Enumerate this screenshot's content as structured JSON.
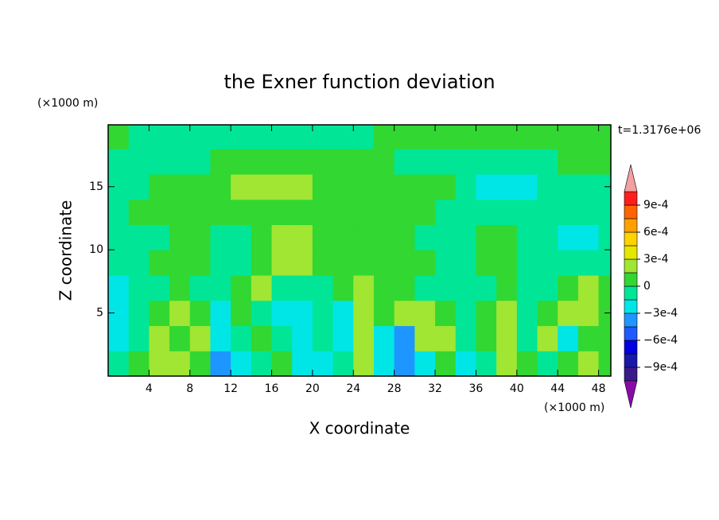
{
  "chart_data": {
    "type": "contour",
    "title": "the Exner function deviation",
    "x_label": "X coordinate",
    "y_label": "Z coordinate",
    "x_unit": "(×1000 m)",
    "y_unit": "(×1000 m)",
    "annotation": "t=1.3176e+06",
    "xlim": [
      0,
      49.2
    ],
    "ylim": [
      0,
      19.9
    ],
    "xticks": [
      4,
      8,
      12,
      16,
      20,
      24,
      28,
      32,
      36,
      40,
      44,
      48
    ],
    "yticks": [
      5,
      10,
      15
    ],
    "x": [
      1,
      3,
      5,
      7,
      9,
      11,
      13,
      15,
      17,
      19,
      21,
      23,
      25,
      27,
      29,
      31,
      33,
      35,
      37,
      39,
      41,
      43,
      45,
      47,
      49
    ],
    "y": [
      1,
      3,
      5,
      7,
      9,
      11,
      13,
      15,
      17,
      19
    ],
    "z": [
      [
        -5e-05,
        5e-05,
        0.0002,
        0.0002,
        5e-05,
        -0.0004,
        -0.0002,
        -5e-05,
        5e-05,
        -0.0002,
        -0.0002,
        -5e-05,
        0.0002,
        -0.0002,
        -0.0004,
        -0.0002,
        5e-05,
        -0.0002,
        -5e-05,
        0.0002,
        5e-05,
        -5e-05,
        5e-05,
        0.0002,
        5e-05
      ],
      [
        -0.0002,
        -5e-05,
        0.0002,
        5e-05,
        0.0002,
        -0.0002,
        -5e-05,
        5e-05,
        -5e-05,
        -0.0002,
        -5e-05,
        -0.0002,
        0.0002,
        -0.0002,
        -0.0004,
        0.0002,
        0.0002,
        -5e-05,
        5e-05,
        0.0002,
        -5e-05,
        0.0002,
        -0.0002,
        5e-05,
        5e-05
      ],
      [
        -0.0002,
        -5e-05,
        5e-05,
        0.0002,
        5e-05,
        -0.0002,
        5e-05,
        -5e-05,
        -0.0002,
        -0.0002,
        -5e-05,
        -0.0002,
        0.0002,
        5e-05,
        0.0002,
        0.0002,
        5e-05,
        -5e-05,
        5e-05,
        0.0002,
        -5e-05,
        5e-05,
        0.0002,
        0.0002,
        5e-05
      ],
      [
        -0.0002,
        -5e-05,
        -5e-05,
        5e-05,
        -5e-05,
        -5e-05,
        5e-05,
        0.0002,
        -5e-05,
        -5e-05,
        -5e-05,
        5e-05,
        0.0002,
        5e-05,
        5e-05,
        -5e-05,
        -5e-05,
        -5e-05,
        -5e-05,
        5e-05,
        -5e-05,
        -5e-05,
        5e-05,
        0.0002,
        5e-05
      ],
      [
        -5e-05,
        -5e-05,
        5e-05,
        5e-05,
        5e-05,
        -5e-05,
        -5e-05,
        5e-05,
        0.0002,
        0.0002,
        5e-05,
        5e-05,
        5e-05,
        5e-05,
        5e-05,
        5e-05,
        -5e-05,
        -5e-05,
        5e-05,
        5e-05,
        -5e-05,
        -5e-05,
        -5e-05,
        -5e-05,
        -5e-05
      ],
      [
        -5e-05,
        -5e-05,
        -5e-05,
        5e-05,
        5e-05,
        -5e-05,
        -5e-05,
        5e-05,
        0.0002,
        0.0002,
        5e-05,
        5e-05,
        5e-05,
        5e-05,
        5e-05,
        -5e-05,
        -5e-05,
        -5e-05,
        5e-05,
        5e-05,
        -5e-05,
        -5e-05,
        -0.00016,
        -0.00016,
        -5e-05
      ],
      [
        -5e-05,
        5e-05,
        5e-05,
        5e-05,
        5e-05,
        5e-05,
        5e-05,
        5e-05,
        5e-05,
        5e-05,
        5e-05,
        5e-05,
        5e-05,
        5e-05,
        5e-05,
        5e-05,
        -5e-05,
        -5e-05,
        -5e-05,
        -5e-05,
        -5e-05,
        -5e-05,
        -5e-05,
        -5e-05,
        -5e-05
      ],
      [
        -5e-05,
        -5e-05,
        5e-05,
        5e-05,
        5e-05,
        5e-05,
        0.0002,
        0.0002,
        0.0002,
        0.0002,
        5e-05,
        5e-05,
        5e-05,
        5e-05,
        5e-05,
        5e-05,
        5e-05,
        -5e-05,
        -0.00016,
        -0.00016,
        -0.00016,
        -5e-05,
        -5e-05,
        -5e-05,
        -5e-05
      ],
      [
        -5e-05,
        -5e-05,
        -5e-05,
        -5e-05,
        -5e-05,
        5e-05,
        5e-05,
        5e-05,
        5e-05,
        5e-05,
        5e-05,
        5e-05,
        5e-05,
        5e-05,
        -5e-05,
        -5e-05,
        -5e-05,
        -5e-05,
        -5e-05,
        -5e-05,
        -5e-05,
        -5e-05,
        5e-05,
        5e-05,
        5e-05
      ],
      [
        5e-05,
        -5e-05,
        -5e-05,
        -5e-05,
        -5e-05,
        -5e-05,
        -5e-05,
        -5e-05,
        -5e-05,
        -5e-05,
        -5e-05,
        -5e-05,
        -5e-05,
        5e-05,
        5e-05,
        5e-05,
        5e-05,
        5e-05,
        5e-05,
        5e-05,
        5e-05,
        5e-05,
        5e-05,
        5e-05,
        5e-05
      ]
    ],
    "levels": [
      -0.00105,
      -0.0009,
      -0.00075,
      -0.0006,
      -0.00045,
      -0.0003,
      -0.00015,
      0,
      0.00015,
      0.0003,
      0.00045,
      0.0006,
      0.00075,
      0.0009,
      0.00105
    ],
    "colors": [
      "#8a0aa8",
      "#3a1a8a",
      "#1818a8",
      "#0000e0",
      "#1e5aff",
      "#1e96ff",
      "#00e6e6",
      "#00e696",
      "#32d732",
      "#a0e632",
      "#e6e600",
      "#ffd200",
      "#ffa000",
      "#ff6400",
      "#ff1e1e",
      "#f4a0a0"
    ],
    "colorbar_ticks": [
      {
        "value": 0.0009,
        "label": "9e-4"
      },
      {
        "value": 0.0006,
        "label": "6e-4"
      },
      {
        "value": 0.0003,
        "label": "3e-4"
      },
      0,
      {
        "value": -0.0003,
        "label": "−3e-4"
      },
      {
        "value": -0.0006,
        "label": "−6e-4"
      },
      {
        "value": -0.0009,
        "label": "−9e-4"
      }
    ]
  }
}
